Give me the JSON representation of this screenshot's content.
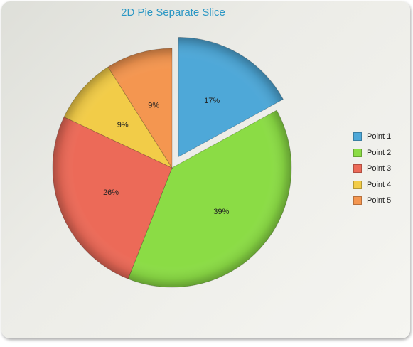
{
  "chart_data": {
    "type": "pie",
    "title": "2D Pie Separate Slice",
    "categories": [
      "Point 1",
      "Point 2",
      "Point 3",
      "Point 4",
      "Point 5"
    ],
    "values": [
      17,
      39,
      26,
      9,
      9
    ],
    "labels": [
      "17%",
      "39%",
      "26%",
      "9%",
      "9%"
    ],
    "colors": [
      "#4ea8d8",
      "#8bdc45",
      "#ec6a58",
      "#f2cc48",
      "#f49650"
    ],
    "exploded": [
      true,
      false,
      false,
      false,
      false
    ],
    "legend_position": "right"
  }
}
